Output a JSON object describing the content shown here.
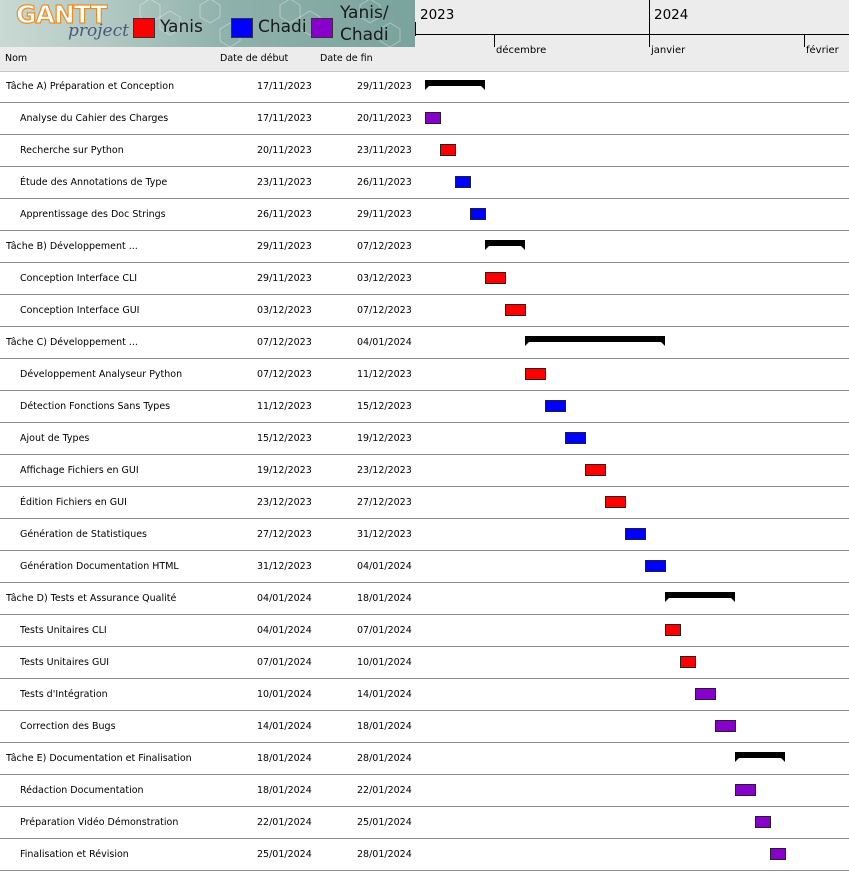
{
  "logo": {
    "main": "GANTT",
    "sub": "project"
  },
  "legend": [
    {
      "label": "Yanis",
      "color": "#ff0000"
    },
    {
      "label": "Chadi",
      "color": "#0000ff"
    },
    {
      "label": "Yanis/\nChadi",
      "color": "#8800cc"
    }
  ],
  "columns": {
    "name": "Nom",
    "start": "Date de début",
    "end": "Date de fin"
  },
  "timeline": {
    "years": [
      "2023",
      "2024"
    ],
    "months": [
      "décembre",
      "janvier",
      "février"
    ]
  },
  "colors": {
    "Yanis": "#ff0000",
    "Chadi": "#0000ff",
    "Both": "#8800cc",
    "summary": "#000000"
  },
  "tasks": [
    {
      "name": "Tâche A) Préparation et Conception",
      "start": "17/11/2023",
      "end": "29/11/2023",
      "summary": true
    },
    {
      "name": "Analyse du Cahier des Charges",
      "start": "17/11/2023",
      "end": "20/11/2023",
      "who": "Both"
    },
    {
      "name": "Recherche sur Python",
      "start": "20/11/2023",
      "end": "23/11/2023",
      "who": "Yanis"
    },
    {
      "name": "Étude des Annotations de Type",
      "start": "23/11/2023",
      "end": "26/11/2023",
      "who": "Chadi"
    },
    {
      "name": "Apprentissage des Doc Strings",
      "start": "26/11/2023",
      "end": "29/11/2023",
      "who": "Chadi"
    },
    {
      "name": "Tâche B) Développement ...",
      "start": "29/11/2023",
      "end": "07/12/2023",
      "summary": true
    },
    {
      "name": "Conception Interface CLI",
      "start": "29/11/2023",
      "end": "03/12/2023",
      "who": "Yanis"
    },
    {
      "name": "Conception Interface GUI",
      "start": "03/12/2023",
      "end": "07/12/2023",
      "who": "Yanis"
    },
    {
      "name": "Tâche C) Développement ...",
      "start": "07/12/2023",
      "end": "04/01/2024",
      "summary": true
    },
    {
      "name": "Développement Analyseur Python",
      "start": "07/12/2023",
      "end": "11/12/2023",
      "who": "Yanis"
    },
    {
      "name": "Détection Fonctions Sans Types",
      "start": "11/12/2023",
      "end": "15/12/2023",
      "who": "Chadi"
    },
    {
      "name": "Ajout de Types",
      "start": "15/12/2023",
      "end": "19/12/2023",
      "who": "Chadi"
    },
    {
      "name": "Affichage Fichiers en GUI",
      "start": "19/12/2023",
      "end": "23/12/2023",
      "who": "Yanis"
    },
    {
      "name": "Édition Fichiers en GUI",
      "start": "23/12/2023",
      "end": "27/12/2023",
      "who": "Yanis"
    },
    {
      "name": "Génération de Statistiques",
      "start": "27/12/2023",
      "end": "31/12/2023",
      "who": "Chadi"
    },
    {
      "name": "Génération Documentation HTML",
      "start": "31/12/2023",
      "end": "04/01/2024",
      "who": "Chadi"
    },
    {
      "name": "Tâche D) Tests et Assurance Qualité",
      "start": "04/01/2024",
      "end": "18/01/2024",
      "summary": true
    },
    {
      "name": "Tests Unitaires CLI",
      "start": "04/01/2024",
      "end": "07/01/2024",
      "who": "Yanis"
    },
    {
      "name": "Tests Unitaires GUI",
      "start": "07/01/2024",
      "end": "10/01/2024",
      "who": "Yanis"
    },
    {
      "name": "Tests d'Intégration",
      "start": "10/01/2024",
      "end": "14/01/2024",
      "who": "Both"
    },
    {
      "name": "Correction des Bugs",
      "start": "14/01/2024",
      "end": "18/01/2024",
      "who": "Both"
    },
    {
      "name": "Tâche E) Documentation et Finalisation",
      "start": "18/01/2024",
      "end": "28/01/2024",
      "summary": true
    },
    {
      "name": "Rédaction Documentation",
      "start": "18/01/2024",
      "end": "22/01/2024",
      "who": "Both"
    },
    {
      "name": "Préparation Vidéo Démonstration",
      "start": "22/01/2024",
      "end": "25/01/2024",
      "who": "Both"
    },
    {
      "name": "Finalisation et Révision",
      "start": "25/01/2024",
      "end": "28/01/2024",
      "who": "Both"
    }
  ]
}
